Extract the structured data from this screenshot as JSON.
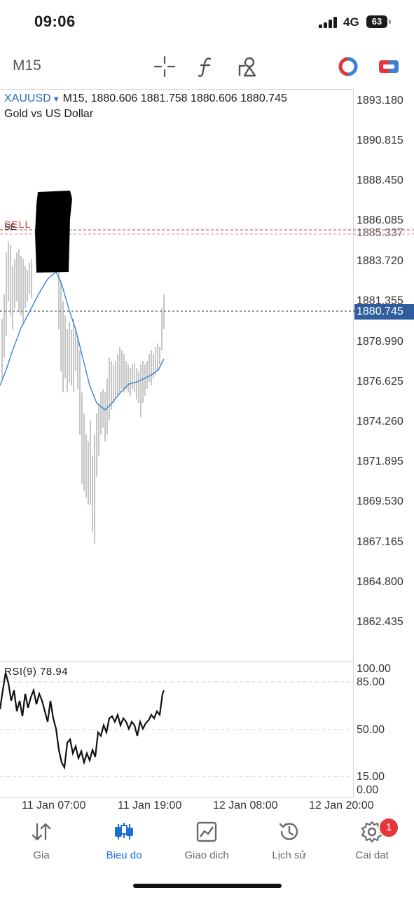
{
  "status_bar": {
    "time": "09:06",
    "network": "4G",
    "battery": "63"
  },
  "toolbar": {
    "timeframe": "M15",
    "icons": [
      "crosshair-icon",
      "function-icon",
      "objects-icon",
      "trade-toggle-icon",
      "one-click-icon"
    ]
  },
  "chart": {
    "symbol": "XAUUSD",
    "ohlc_text": "M15, 1880.606 1881.758 1880.606 1880.745",
    "description": "Gold vs US Dollar",
    "sell_label": "SELL",
    "sell_sub_label": "SE",
    "price_axis": [
      "1893.180",
      "1890.815",
      "1888.450",
      "1886.085",
      "1885.337",
      "1883.720",
      "1881.355",
      "1878.990",
      "1876.625",
      "1874.260",
      "1871.895",
      "1869.530",
      "1867.165",
      "1864.800",
      "1862.435"
    ],
    "current_price": "1880.745",
    "time_axis": [
      "11 Jan 07:00",
      "11 Jan 19:00",
      "12 Jan 08:00",
      "12 Jan 20:00"
    ],
    "colors": {
      "ma_line": "#3a82d6",
      "bars": "#a6a6a6",
      "sell_line": "#d23b3b",
      "price_tag": "#2f5e9e"
    }
  },
  "rsi": {
    "label": "RSI(9) 78.94",
    "axis": [
      "100.00",
      "85.00",
      "50.00",
      "15.00",
      "0.00"
    ]
  },
  "bottom_nav": [
    {
      "label": "Gia",
      "icon": "quotes-icon",
      "active": false
    },
    {
      "label": "Bieu do",
      "icon": "chart-candles-icon",
      "active": true
    },
    {
      "label": "Giao dich",
      "icon": "trade-icon",
      "active": false
    },
    {
      "label": "Lịch sử",
      "icon": "history-icon",
      "active": false
    },
    {
      "label": "Cai dat",
      "icon": "settings-icon",
      "active": false,
      "badge": "1"
    }
  ]
}
